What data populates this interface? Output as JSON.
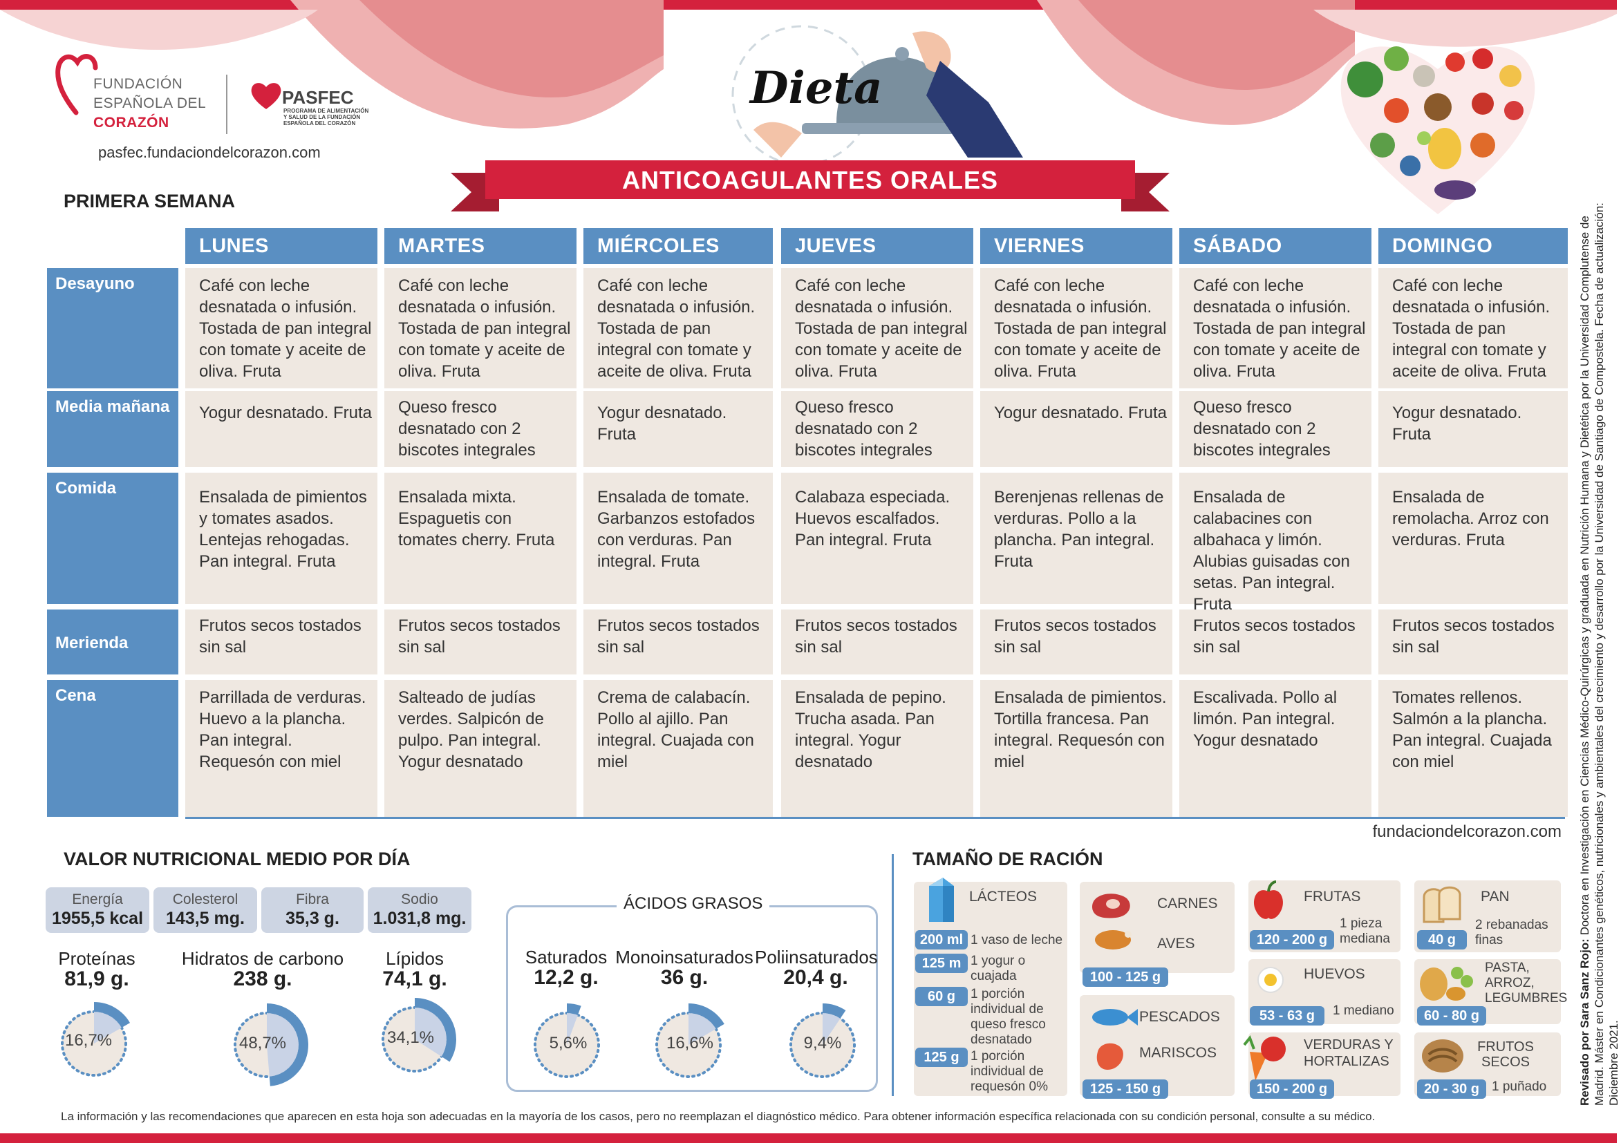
{
  "header": {
    "org_line1": "FUNDACIÓN",
    "org_line2": "ESPAÑOLA DEL",
    "org_line3": "CORAZÓN",
    "pasfec_logo": "PASFEC",
    "pasfec_sub1": "PROGRAMA DE ALIMENTACIÓN",
    "pasfec_sub2": "Y SALUD DE LA FUNDACIÓN",
    "pasfec_sub3": "ESPAÑOLA DEL CORAZÓN",
    "url": "pasfec.fundaciondelcorazon.com",
    "dieta": "Dieta",
    "title": "ANTICOAGULANTES ORALES"
  },
  "week_label": "PRIMERA SEMANA",
  "days": [
    "LUNES",
    "MARTES",
    "MIÉRCOLES",
    "JUEVES",
    "VIERNES",
    "SÁBADO",
    "DOMINGO"
  ],
  "meals": [
    "Desayuno",
    "Media mañana",
    "Comida",
    "Merienda",
    "Cena"
  ],
  "menu": [
    [
      "Café con leche desnatada o infusión. Tostada de pan integral con tomate y aceite de oliva. Fruta",
      "Café con leche desnatada o infusión. Tostada de pan integral con tomate y aceite de oliva. Fruta",
      "Café con leche desnatada o infusión. Tostada de pan integral con tomate y aceite de oliva. Fruta",
      "Café con leche desnatada o infusión. Tostada de pan integral con tomate y aceite de oliva. Fruta",
      "Café con leche desnatada o infusión. Tostada de pan integral con tomate y aceite de oliva. Fruta",
      "Café con leche desnatada o infusión. Tostada de pan integral con tomate y aceite de oliva. Fruta",
      "Café con leche desnatada o infusión. Tostada de pan integral con tomate y aceite de oliva. Fruta"
    ],
    [
      "Yogur desnatado. Fruta",
      "Queso fresco desnatado con 2 biscotes integrales",
      "Yogur desnatado. Fruta",
      "Queso fresco desnatado con 2 biscotes integrales",
      "Yogur desnatado. Fruta",
      "Queso fresco desnatado con 2 biscotes integrales",
      "Yogur desnatado. Fruta"
    ],
    [
      "Ensalada de pimientos y tomates asados. Lentejas rehogadas. Pan integral. Fruta",
      "Ensalada mixta. Espaguetis con tomates cherry. Fruta",
      "Ensalada de tomate. Garbanzos estofados con verduras. Pan integral. Fruta",
      "Calabaza especiada. Huevos escalfados. Pan integral. Fruta",
      "Berenjenas rellenas de verduras. Pollo a la plancha. Pan integral. Fruta",
      "Ensalada de calabacines con albahaca y limón. Alubias guisadas con setas. Pan integral. Fruta",
      "Ensalada de remolacha. Arroz con verduras. Fruta"
    ],
    [
      "Frutos secos tostados sin sal",
      "Frutos secos tostados sin sal",
      "Frutos secos tostados sin sal",
      "Frutos secos tostados sin sal",
      "Frutos secos tostados sin sal",
      "Frutos secos tostados sin sal",
      "Frutos secos tostados sin sal"
    ],
    [
      "Parrillada de verduras. Huevo a la plancha. Pan integral. Requesón con miel",
      "Salteado de judías verdes. Salpicón de pulpo. Pan integral. Yogur desnatado",
      "Crema de calabacín. Pollo al ajillo. Pan integral. Cuajada con miel",
      "Ensalada de pepino. Trucha asada. Pan integral. Yogur desnatado",
      "Ensalada de pimientos. Tortilla francesa. Pan integral. Requesón con miel",
      "Escalivada. Pollo al limón. Pan integral. Yogur desnatado",
      "Tomates rellenos. Salmón a la plancha. Pan integral. Cuajada con miel"
    ]
  ],
  "site_url": "fundaciondelcorazon.com",
  "nutrition": {
    "title": "VALOR NUTRICIONAL MEDIO POR DÍA",
    "boxes": [
      {
        "label": "Energía",
        "value": "1955,5 kcal"
      },
      {
        "label": "Colesterol",
        "value": "143,5 mg."
      },
      {
        "label": "Fibra",
        "value": "35,3 g."
      },
      {
        "label": "Sodio",
        "value": "1.031,8 mg."
      }
    ],
    "macros": [
      {
        "label": "Proteínas",
        "value": "81,9 g.",
        "pct_text": "16,7%",
        "pct": 16.7
      },
      {
        "label": "Hidratos de carbono",
        "value": "238 g.",
        "pct_text": "48,7%",
        "pct": 48.7
      },
      {
        "label": "Lípidos",
        "value": "74,1 g.",
        "pct_text": "34,1%",
        "pct": 34.1
      }
    ],
    "acids_title": "ÁCIDOS GRASOS",
    "acids": [
      {
        "label": "Saturados",
        "value": "12,2 g.",
        "pct_text": "5,6%",
        "pct": 5.6
      },
      {
        "label": "Monoinsaturados",
        "value": "36 g.",
        "pct_text": "16,6%",
        "pct": 16.6
      },
      {
        "label": "Poliinsaturados",
        "value": "20,4 g.",
        "pct_text": "9,4%",
        "pct": 9.4
      }
    ]
  },
  "portions": {
    "title": "TAMAÑO DE RACIÓN",
    "lacteos": {
      "name": "LÁCTEOS",
      "items": [
        {
          "tag": "200 ml",
          "text": "1 vaso de leche"
        },
        {
          "tag": "125 m",
          "text": "1 yogur o cuajada"
        },
        {
          "tag": "60 g",
          "text": "1 porción individual de queso fresco desnatado"
        },
        {
          "tag": "125 g",
          "text": "1 porción individual de requesón 0%"
        }
      ]
    },
    "carnes": {
      "name1": "CARNES",
      "name2": "AVES",
      "tag": "100 - 125 g"
    },
    "pescados": {
      "name1": "PESCADOS",
      "name2": "MARISCOS",
      "tag": "125 - 150 g"
    },
    "frutas": {
      "name": "FRUTAS",
      "note": "1 pieza mediana",
      "tag": "120 - 200 g"
    },
    "huevos": {
      "name": "HUEVOS",
      "note": "1 mediano",
      "tag": "53 - 63 g"
    },
    "verduras": {
      "name": "VERDURAS Y HORTALIZAS",
      "tag": "150 - 200 g"
    },
    "pan": {
      "name": "PAN",
      "note": "2 rebanadas finas",
      "tag": "40 g"
    },
    "pasta": {
      "name": "PASTA, ARROZ, LEGUMBRES",
      "tag": "60 - 80 g"
    },
    "frutos_secos": {
      "name": "FRUTOS SECOS",
      "note": "1 puñado",
      "tag": "20 - 30 g"
    }
  },
  "disclaimer": "La información y las recomendaciones que aparecen en esta hoja son adecuadas en la mayoría de los casos, pero no reemplazan el diagnóstico médico. Para obtener información específica relacionada con su condición personal, consulte a su médico.",
  "side_note": {
    "reviewer": "Revisado por Sara Sanz Rojo:",
    "text": " Doctora en Investigación en Ciencias Médico-Quirúrgicas y graduada en Nutrición Humana y Dietética por la Universidad Complutense de Madrid. Máster en Condicionantes genéticos, nutricionales y ambientales del crecimiento y desarrollo por la Universidad de Santiago de Compostela. Fecha de actualización: Diciembre 2021."
  },
  "colors": {
    "accent_red": "#d4213d",
    "accent_blue": "#5a8fc2",
    "cell_bg": "#efe8e1"
  }
}
